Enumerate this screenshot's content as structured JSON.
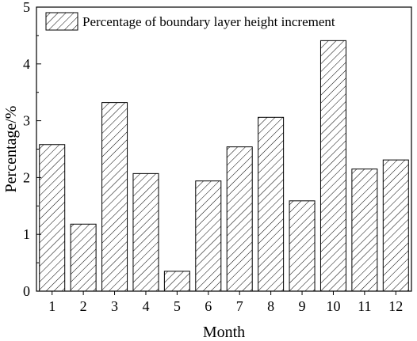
{
  "chart_data": {
    "type": "bar",
    "categories": [
      "1",
      "2",
      "3",
      "4",
      "5",
      "6",
      "7",
      "8",
      "9",
      "10",
      "11",
      "12"
    ],
    "series": [
      {
        "name": "Percentage of boundary layer height increment",
        "values": [
          2.58,
          1.18,
          3.32,
          2.07,
          0.35,
          1.94,
          2.54,
          3.06,
          1.59,
          4.41,
          2.15,
          2.31
        ]
      }
    ],
    "xlabel": "Month",
    "ylabel": "Percentage/%",
    "ylim": [
      0,
      5
    ],
    "yticks": [
      "0",
      "1",
      "2",
      "3",
      "4",
      "5"
    ],
    "grid": false,
    "legend_position": "top-left",
    "bar_fill": "hatched",
    "colors": {
      "bar_stroke": "#000000",
      "hatch": "#000000",
      "background": "#ffffff"
    }
  }
}
